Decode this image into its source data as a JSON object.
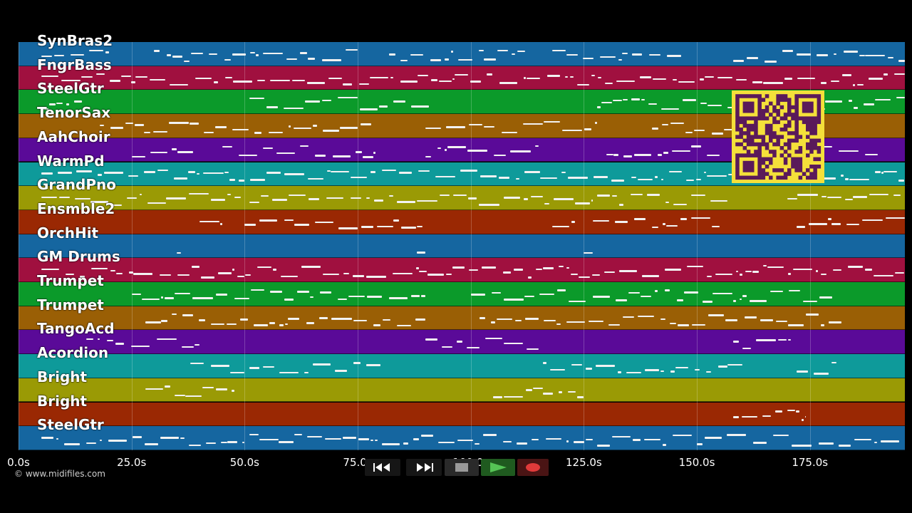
{
  "app": {
    "copyright": "© www.midifiles.com"
  },
  "timeline": {
    "duration_s": 196,
    "ticks": [
      {
        "value": 0,
        "label": "0.0s"
      },
      {
        "value": 25,
        "label": "25.0s"
      },
      {
        "value": 50,
        "label": "50.0s"
      },
      {
        "value": 75,
        "label": "75.0s"
      },
      {
        "value": 100,
        "label": "100.0s"
      },
      {
        "value": 125,
        "label": "125.0s"
      },
      {
        "value": 150,
        "label": "150.0s"
      },
      {
        "value": 175,
        "label": "175.0s"
      }
    ]
  },
  "tracks": [
    {
      "name": "SynBras2",
      "color": "#1566a0",
      "segments": [
        [
          5,
          20
        ],
        [
          30,
          75
        ],
        [
          82,
          112
        ],
        [
          118,
          147
        ],
        [
          158,
          196
        ]
      ]
    },
    {
      "name": "FngrBass",
      "color": "#a0103f",
      "segments": [
        [
          5,
          196
        ]
      ]
    },
    {
      "name": "SteelGtr",
      "color": "#0b9a2a",
      "segments": [
        [
          5,
          14
        ],
        [
          51,
          91
        ],
        [
          128,
          196
        ]
      ]
    },
    {
      "name": "TenorSax",
      "color": "#9a5f05",
      "segments": [
        [
          18,
          78
        ],
        [
          90,
          128
        ],
        [
          140,
          176
        ]
      ]
    },
    {
      "name": "AahChoir",
      "color": "#5a0a98",
      "segments": [
        [
          25,
          40
        ],
        [
          45,
          80
        ],
        [
          90,
          115
        ],
        [
          130,
          155
        ],
        [
          165,
          190
        ]
      ]
    },
    {
      "name": "WarmPd",
      "color": "#0e9a9a",
      "segments": [
        [
          5,
          196
        ]
      ]
    },
    {
      "name": "GrandPno",
      "color": "#9a9a05",
      "segments": [
        [
          5,
          50
        ],
        [
          51,
          127
        ],
        [
          128,
          158
        ],
        [
          170,
          196
        ]
      ]
    },
    {
      "name": "Ensmble2",
      "color": "#9a2803",
      "segments": [
        [
          40,
          45
        ],
        [
          50,
          90
        ],
        [
          118,
          123
        ],
        [
          127,
          155
        ],
        [
          172,
          196
        ]
      ]
    },
    {
      "name": "OrchHit",
      "color": "#1566a0",
      "segments": [
        [
          35,
          36
        ],
        [
          88,
          90
        ],
        [
          125,
          127
        ]
      ]
    },
    {
      "name": "GM Drums",
      "color": "#a0103f",
      "segments": [
        [
          5,
          196
        ]
      ]
    },
    {
      "name": "Trumpet",
      "color": "#0b9a2a",
      "segments": [
        [
          25,
          90
        ],
        [
          100,
          180
        ]
      ]
    },
    {
      "name": "Trumpet",
      "color": "#9a5f05",
      "segments": [
        [
          28,
          90
        ],
        [
          102,
          182
        ]
      ]
    },
    {
      "name": "TangoAcd",
      "color": "#5a0a98",
      "segments": [
        [
          15,
          40
        ],
        [
          90,
          115
        ],
        [
          158,
          172
        ]
      ]
    },
    {
      "name": "Acordion",
      "color": "#0e9a9a",
      "segments": [
        [
          38,
          80
        ],
        [
          116,
          160
        ],
        [
          172,
          182
        ]
      ]
    },
    {
      "name": "Bright",
      "color": "#9a9a05",
      "segments": [
        [
          28,
          48
        ],
        [
          105,
          125
        ]
      ]
    },
    {
      "name": "Bright",
      "color": "#9a2803",
      "segments": [
        [
          158,
          174
        ]
      ]
    },
    {
      "name": "SteelGtr",
      "color": "#1566a0",
      "segments": [
        [
          5,
          50
        ],
        [
          51,
          127
        ],
        [
          128,
          196
        ]
      ]
    }
  ],
  "transport": {
    "buttons": [
      {
        "id": "rewind",
        "icon": "rewind-icon"
      },
      {
        "id": "fast-forward",
        "icon": "fast-forward-icon"
      },
      {
        "id": "stop",
        "icon": "stop-icon"
      },
      {
        "id": "play",
        "icon": "play-icon"
      },
      {
        "id": "record",
        "icon": "record-icon"
      }
    ]
  },
  "overlay": {
    "qr_icon": "qr-code-icon",
    "qr_color": "#f4e03a",
    "qr_dark": "#5a1a5a"
  }
}
